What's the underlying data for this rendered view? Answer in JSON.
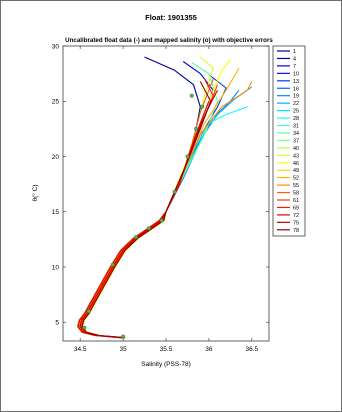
{
  "figure": {
    "title": "Float: 1901355"
  },
  "chart_data": {
    "type": "line",
    "title": "Uncalibrated float data (-) and mapped salinity (o) with objective errors",
    "xlabel": "Salinity (PSS-78)",
    "ylabel": "θ(° C)",
    "xlim": [
      34.3,
      36.7
    ],
    "ylim": [
      3.3,
      30
    ],
    "xticks": [
      34.5,
      35,
      35.5,
      36,
      36.5
    ],
    "yticks": [
      5,
      10,
      15,
      20,
      25,
      30
    ],
    "grid": false,
    "legend_position": "right-outside",
    "legend": {
      "entries": [
        "1",
        "4",
        "7",
        "10",
        "13",
        "16",
        "19",
        "22",
        "25",
        "28",
        "31",
        "34",
        "37",
        "40",
        "43",
        "46",
        "49",
        "52",
        "55",
        "58",
        "61",
        "69",
        "72",
        "75",
        "78"
      ],
      "colors": [
        "#00008f",
        "#0000b8",
        "#0000e0",
        "#0010ff",
        "#0038ff",
        "#0060ff",
        "#0088ff",
        "#00b0ff",
        "#00d8ff",
        "#10ffef",
        "#38ffc7",
        "#60ff9f",
        "#88ff77",
        "#b0ff4f",
        "#d8ff27",
        "#ffff00",
        "#ffd800",
        "#ffb000",
        "#ff8800",
        "#ff6000",
        "#ff3800",
        "#ff1000",
        "#e70000",
        "#bf0000",
        "#970000"
      ]
    },
    "profile_path": {
      "deep_to_mid": [
        [
          35.0,
          3.6
        ],
        [
          34.7,
          3.8
        ],
        [
          34.55,
          4.1
        ],
        [
          34.5,
          4.6
        ],
        [
          34.52,
          5.2
        ],
        [
          34.58,
          5.8
        ],
        [
          34.65,
          6.8
        ],
        [
          34.75,
          8.2
        ],
        [
          34.88,
          10.0
        ],
        [
          35.0,
          11.5
        ],
        [
          35.15,
          12.6
        ],
        [
          35.3,
          13.4
        ],
        [
          35.45,
          14.2
        ]
      ],
      "upper_profiles": [
        {
          "series": 0,
          "points": [
            [
              35.5,
              15.0
            ],
            [
              35.6,
              16.5
            ],
            [
              35.7,
              18.5
            ],
            [
              35.78,
              20.5
            ],
            [
              35.85,
              22.5
            ],
            [
              35.9,
              24.5
            ],
            [
              35.82,
              26.5
            ],
            [
              35.6,
              27.8
            ],
            [
              35.25,
              29.0
            ]
          ]
        },
        {
          "series": 2,
          "points": [
            [
              35.5,
              15.0
            ],
            [
              35.62,
              17.0
            ],
            [
              35.75,
              19.5
            ],
            [
              35.85,
              22.0
            ],
            [
              35.95,
              24.0
            ],
            [
              36.05,
              26.0
            ],
            [
              35.9,
              27.5
            ],
            [
              35.7,
              28.6
            ]
          ]
        },
        {
          "series": 4,
          "points": [
            [
              35.5,
              15.0
            ],
            [
              35.66,
              17.5
            ],
            [
              35.8,
              20.0
            ],
            [
              35.95,
              22.5
            ],
            [
              36.1,
              24.5
            ],
            [
              36.2,
              26.2
            ],
            [
              36.0,
              27.4
            ]
          ]
        },
        {
          "series": 6,
          "points": [
            [
              35.5,
              15.0
            ],
            [
              35.7,
              18.0
            ],
            [
              35.88,
              21.0
            ],
            [
              36.05,
              23.5
            ],
            [
              36.25,
              25.0
            ],
            [
              36.35,
              26.0
            ]
          ]
        },
        {
          "series": 7,
          "points": [
            [
              35.5,
              15.0
            ],
            [
              35.72,
              18.5
            ],
            [
              35.9,
              21.5
            ],
            [
              36.1,
              23.8
            ],
            [
              36.3,
              25.2
            ],
            [
              36.5,
              26.3
            ]
          ]
        },
        {
          "series": 9,
          "points": [
            [
              35.5,
              15.0
            ],
            [
              35.7,
              18.2
            ],
            [
              35.85,
              21.0
            ],
            [
              36.0,
              23.0
            ],
            [
              36.2,
              23.8
            ],
            [
              36.45,
              24.5
            ]
          ]
        },
        {
          "series": 11,
          "points": [
            [
              35.5,
              15.0
            ],
            [
              35.75,
              19.0
            ],
            [
              35.95,
              22.0
            ],
            [
              36.1,
              25.0
            ],
            [
              36.0,
              27.5
            ],
            [
              35.8,
              28.5
            ]
          ]
        },
        {
          "series": 14,
          "points": [
            [
              35.5,
              15.0
            ],
            [
              35.72,
              19.0
            ],
            [
              35.85,
              22.5
            ],
            [
              35.95,
              25.5
            ],
            [
              36.05,
              28.0
            ],
            [
              35.9,
              29.0
            ]
          ]
        },
        {
          "series": 15,
          "points": [
            [
              35.5,
              15.0
            ],
            [
              35.7,
              18.8
            ],
            [
              35.88,
              22.5
            ],
            [
              36.0,
              25.0
            ],
            [
              36.15,
              27.8
            ],
            [
              36.25,
              28.8
            ]
          ]
        },
        {
          "series": 17,
          "points": [
            [
              35.5,
              15.0
            ],
            [
              35.74,
              19.2
            ],
            [
              35.95,
              23.0
            ],
            [
              36.2,
              26.0
            ],
            [
              36.35,
              28.0
            ]
          ]
        },
        {
          "series": 18,
          "points": [
            [
              35.5,
              15.0
            ],
            [
              35.72,
              18.8
            ],
            [
              35.9,
              22.0
            ],
            [
              36.15,
              24.5
            ],
            [
              36.45,
              26.0
            ],
            [
              36.5,
              26.8
            ]
          ]
        },
        {
          "series": 19,
          "points": [
            [
              35.5,
              15.0
            ],
            [
              35.68,
              18.0
            ],
            [
              35.8,
              21.0
            ],
            [
              35.9,
              24.0
            ],
            [
              36.05,
              27.0
            ]
          ]
        },
        {
          "series": 20,
          "points": [
            [
              35.5,
              15.0
            ],
            [
              35.7,
              18.5
            ],
            [
              35.85,
              22.0
            ],
            [
              36.0,
              24.5
            ],
            [
              36.1,
              26.5
            ]
          ]
        },
        {
          "series": 21,
          "points": [
            [
              35.5,
              15.0
            ],
            [
              35.75,
              19.5
            ],
            [
              35.92,
              23.0
            ],
            [
              36.05,
              25.5
            ],
            [
              35.95,
              27.0
            ]
          ]
        },
        {
          "series": 22,
          "points": [
            [
              35.5,
              15.0
            ],
            [
              35.66,
              17.5
            ],
            [
              35.78,
              20.5
            ],
            [
              35.9,
              23.0
            ],
            [
              36.0,
              25.0
            ]
          ]
        },
        {
          "series": 23,
          "points": [
            [
              35.5,
              15.0
            ],
            [
              35.7,
              18.6
            ],
            [
              35.85,
              21.8
            ],
            [
              35.98,
              24.2
            ],
            [
              36.1,
              26.0
            ]
          ]
        },
        {
          "series": 24,
          "points": [
            [
              35.5,
              15.0
            ],
            [
              35.72,
              19.0
            ],
            [
              35.9,
              22.5
            ],
            [
              36.02,
              25.0
            ],
            [
              35.9,
              26.8
            ]
          ]
        }
      ]
    },
    "mapped_points": [
      [
        35.0,
        3.7
      ],
      [
        34.55,
        4.5
      ],
      [
        34.6,
        6.0
      ],
      [
        34.88,
        10.2
      ],
      [
        35.15,
        12.7
      ],
      [
        35.3,
        13.5
      ],
      [
        35.45,
        14.2
      ],
      [
        35.6,
        16.8
      ],
      [
        35.75,
        20.0
      ],
      [
        35.85,
        22.5
      ],
      [
        35.92,
        24.5
      ],
      [
        35.8,
        25.5
      ]
    ]
  }
}
